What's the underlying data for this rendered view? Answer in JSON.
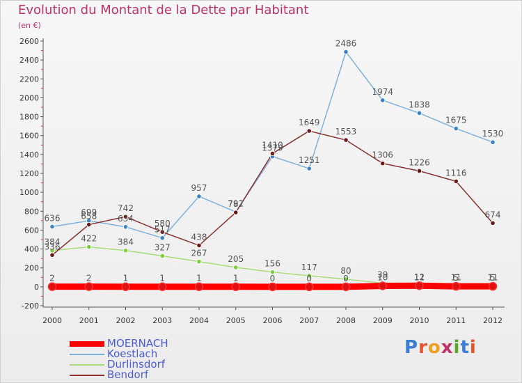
{
  "title": "Evolution du Montant de la Dette par Habitant",
  "subtitle": "(en €)",
  "logo": {
    "text": "Proxiti"
  },
  "colors": {
    "title": "#c0306b",
    "legend_text": "#4a5bd4",
    "axis": "#444444"
  },
  "chart_data": {
    "type": "line",
    "title": "Evolution du Montant de la Dette par Habitant",
    "subtitle": "(en €)",
    "xlabel": "",
    "ylabel": "",
    "x": [
      "2000",
      "2001",
      "2002",
      "2003",
      "2004",
      "2005",
      "2006",
      "2007",
      "2008",
      "2009",
      "2010",
      "2011",
      "2012"
    ],
    "ylim": [
      -200,
      2600
    ],
    "yticks": [
      -200,
      0,
      200,
      400,
      600,
      800,
      1000,
      1200,
      1400,
      1600,
      1800,
      2000,
      2200,
      2400,
      2600
    ],
    "grid": false,
    "legend_position": "bottom-left",
    "series": [
      {
        "name": "MOERNACH",
        "color": "#ff0000",
        "point_color": "#e01010",
        "width": 9,
        "values": [
          2,
          2,
          1,
          1,
          1,
          1,
          0,
          0,
          0,
          10,
          12,
          5,
          5
        ]
      },
      {
        "name": "Koestlach",
        "color": "#7fb0d8",
        "point_color": "#3b82c4",
        "width": 1.5,
        "values": [
          636,
          699,
          634,
          517,
          957,
          792,
          1379,
          1251,
          2486,
          1974,
          1838,
          1675,
          1530
        ]
      },
      {
        "name": "Durlinsdorf",
        "color": "#a8dc7a",
        "point_color": "#7ccc3c",
        "width": 1.5,
        "values": [
          384,
          422,
          384,
          327,
          267,
          205,
          156,
          117,
          80,
          39,
          11,
          11,
          11
        ]
      },
      {
        "name": "Bendorf",
        "color": "#8a3030",
        "point_color": "#6a1818",
        "width": 1.5,
        "values": [
          336,
          658,
          742,
          580,
          438,
          787,
          1410,
          1649,
          1553,
          1306,
          1226,
          1116,
          674
        ]
      }
    ],
    "data_labels": [
      {
        "series": "MOERNACH",
        "labels": [
          "2",
          "2",
          "1",
          "1",
          "1",
          "1",
          "0",
          "0",
          "0",
          "10",
          "12",
          "5",
          "5"
        ]
      },
      {
        "series": "Koestlach",
        "labels": [
          "636",
          "699",
          "634",
          "517",
          "957",
          "792",
          "1379",
          "1251",
          "2486",
          "1974",
          "1838",
          "1675",
          "1530"
        ]
      },
      {
        "series": "Durlinsdorf",
        "labels": [
          "384",
          "422",
          "384",
          "327",
          "267",
          "205",
          "156",
          "117",
          "80",
          "39",
          "11",
          "11",
          "11"
        ]
      },
      {
        "series": "Bendorf",
        "labels": [
          "336",
          "658",
          "742",
          "580",
          "438",
          "787",
          "1410",
          "1649",
          "1553",
          "1306",
          "1226",
          "1116",
          "674"
        ]
      }
    ]
  }
}
